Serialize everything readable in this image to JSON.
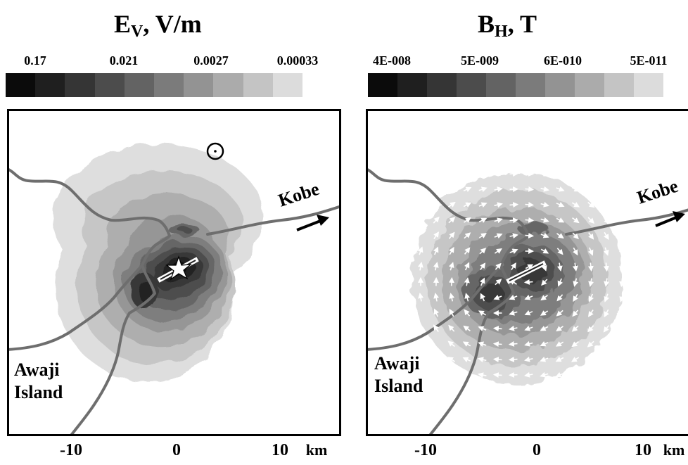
{
  "panels": [
    {
      "title_main": "E",
      "title_sub": "V",
      "title_rest": ", V/m",
      "colorbar": {
        "labels": [
          "0.17",
          "0.021",
          "0.0027",
          "0.00033"
        ],
        "colors": [
          "#0b0b0b",
          "#1f1f1f",
          "#353535",
          "#4c4c4c",
          "#636363",
          "#7b7b7b",
          "#939393",
          "#ababab",
          "#c4c4c4",
          "#dcdcdc"
        ]
      },
      "labels": {
        "city": "Kobe",
        "island_line1": "Awaji",
        "island_line2": "Island"
      },
      "x_ticks": [
        "-10",
        "0",
        "10"
      ],
      "x_unit": "km"
    },
    {
      "title_main": "B",
      "title_sub": "H",
      "title_rest": ", T",
      "colorbar": {
        "labels": [
          "4E-008",
          "5E-009",
          "6E-010",
          "5E-011"
        ],
        "colors": [
          "#0b0b0b",
          "#1f1f1f",
          "#353535",
          "#4c4c4c",
          "#636363",
          "#7b7b7b",
          "#939393",
          "#ababab",
          "#c4c4c4",
          "#dcdcdc"
        ]
      },
      "labels": {
        "city": "Kobe",
        "island_line1": "Awaji",
        "island_line2": "Island"
      },
      "x_ticks": [
        "-10",
        "0",
        "10"
      ],
      "x_unit": "km"
    }
  ]
}
